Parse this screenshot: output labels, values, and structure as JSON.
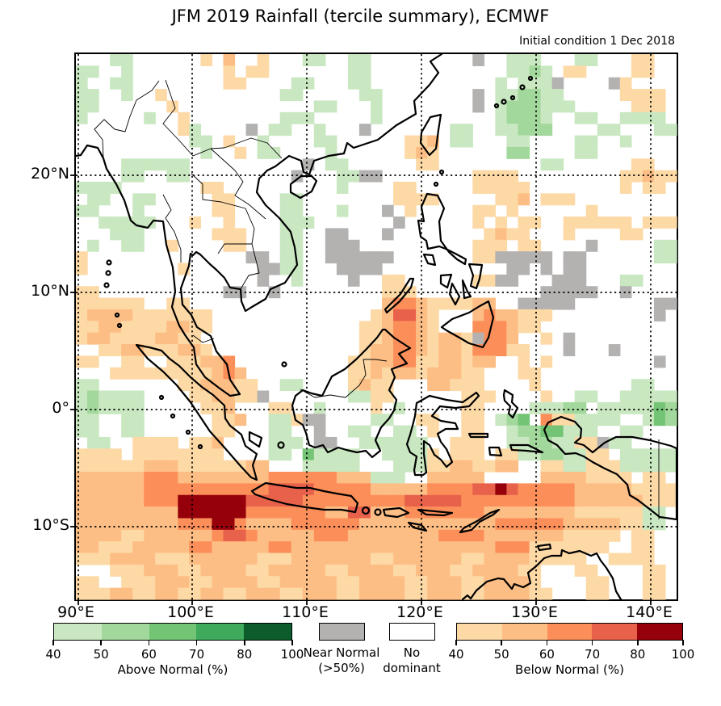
{
  "title": "JFM 2019 Rainfall (tercile summary), ECMWF",
  "subtitle": "Initial condition 1 Dec 2018",
  "axes": {
    "x_ticks": [
      "90°E",
      "100°E",
      "110°E",
      "120°E",
      "130°E",
      "140°E"
    ],
    "y_ticks": [
      "20°N",
      "10°N",
      "0°",
      "10°S"
    ],
    "lon_range": [
      90,
      143
    ],
    "lat_range": [
      -16.5,
      30.5
    ],
    "grid_lines": "dotted at 10-degree intervals"
  },
  "legend": {
    "above": {
      "caption": "Above Normal (%)",
      "tick_labels": [
        "40",
        "50",
        "60",
        "70",
        "80",
        "100"
      ],
      "colors": [
        "#c9e8c1",
        "#a3d89c",
        "#74c476",
        "#3fa95c",
        "#0c5c2c"
      ]
    },
    "near_normal": {
      "line1": "Near Normal",
      "line2": "(>50%)",
      "color": "#b4b1b1"
    },
    "no_dominant": {
      "line1": "No",
      "line2": "dominant",
      "color": "#ffffff"
    },
    "below": {
      "caption": "Below Normal (%)",
      "tick_labels": [
        "40",
        "50",
        "60",
        "70",
        "80",
        "100"
      ],
      "colors": [
        "#fdd9a6",
        "#fdbe85",
        "#fc8e5a",
        "#e8614b",
        "#95000a"
      ]
    }
  },
  "chart_data": {
    "type": "heatmap",
    "title": "JFM 2019 Rainfall (tercile summary), ECMWF",
    "subtitle": "Initial condition 1 Dec 2018",
    "grid_cell_degrees": 1,
    "lon_start": 90,
    "lat_start_top": 30.5,
    "cols": 53,
    "rows": 47,
    "legend_key": {
      ".": "no dominant tercile (white)",
      "g": "near normal >50% (gray)",
      "A": "above normal 40-50%",
      "B": "above normal 50-60%",
      "C": "above normal 60-70%",
      "D": "above normal 70-80%",
      "E": "above normal 80-100%",
      "1": "below normal 40-50%",
      "2": "below normal 50-60%",
      "3": "below normal 60-70%",
      "4": "below normal 70-80%",
      "5": "below normal 80-100%"
    },
    "cell_colors": {
      ".": "#ffffff",
      "g": "#b4b1b1",
      "A": "#c9e8c1",
      "B": "#a3d89c",
      "C": "#74c476",
      "D": "#3fa95c",
      "E": "#0c5c2c",
      "1": "#fdd9a6",
      "2": "#fdbe85",
      "3": "#fc8e5a",
      "4": "#e8614b",
      "5": "#95000a"
    },
    "grid_rows": [
      "...AA......1.2..1...AA..AA.........g..AAA...AA...11..",
      "AA..A........1.11.......AA............AABA.11....11..",
      "A..AA........11....AA...AA...........A.AAAg....g1....",
      "AA..A..1..........AA.....AA........g.AABBAA.....1111.",
      "AA......1............AA...A........g.ABBBAAA.....111.",
      "A.....A..1........AAA.....A..........ABBBA..AA..AAAA..",
      ".........1A....g.AA..A...g.......AA..AABBB....AA...AA",
      "..........AA.1..A....AA......112.AA...AA....AA..A....",
      "...........A..1.AA....A......121......BB....AA.......",
      "....AAAAAA..........g.AA......11.........AA......11..",
      "....AA..AA.........g...AAgg........1111.........11211",
      "AAAA.......11..........A....11.....11111........1.11.",
      ".AA..AA.....11....AA........1111.....112.111.........",
      "AA...A......11....AA...A...g.1.....11.1......1.......",
      "..AAAAA...1..1....AAA.......g......1.1.11..111111.111",
      "...AAA......111...AA..gg...g........1211...1....11...",
      ".A..AA..1....11...AA..ggg..........111.11....g.....AA",
      "1..............gg.AA..gggggg.......11ggggg.gg......AA",
      "1........1......ggAA...gggg...........gg.g.gg........",
      "................g..A....g..11......11gg...ggg...AA...",
      "11...........gg..g.........111...........ggggg..g....",
      "111111..11.................2332111122..ggggg.......gg",
      "122221111111..............124421...2322111.........g.",
      "112211112211.............1123321...333211............",
      "12211112211..............1123321221g332..1.g.........",
      "..1122111221.............122332122133311...g...g.....",
      "11..11..111223..........1122331122122..1.1.........g.",
      "...111111111232.........112122122211...11............",
      "AA.......1122211..AA....1211...22111....1........AA..",
      "ABAAAA....112211g.......AA11......111....1..AA..AAAAA",
      "ABAAAA.....112...11..A....1.A.....11....AAABB.AAAAACB",
      "AA..AA......112..AA1gg....AA..11..11.ABC.311AAAA..ACB",
      "AA..AA......11...AA..g..AA..AA.1..11..ABBCCAAA..AA...",
      ".AA..1111.112....AAA.gg..AAAAAA..111..AABBAA11gAA....",
      "1111.11111111....AA.CAAAA..AAAA1.111.11AABBAA11.AAAAA",
      "11111122211111122...AAAAA...AAA11221122..11AA111AAAAA",
      "22222233322222222333333222AAA..22222.....22221111.11.",
      "22222233333333333444433333222223333445433333222221111",
      "22222233355555544444333333333444443333333333222222111",
      "22222222255555533333332244222333333322222222111111AA.",
      "22222222233355322223333332222222222223333332222211AA.",
      "222211222222344322222333222222223333222222211111.11..",
      "22111222223322222332222222222222222223331111111..11...",
      "111222211122222211122222221122222211222211111..1111.",
      "...11122211222211222221122221122211222211...11....11.",
      "11..1112221122221122222112222112221122221 ...11...11...",
      "111221122112211222112221122221122211222211...11...11."
    ]
  }
}
